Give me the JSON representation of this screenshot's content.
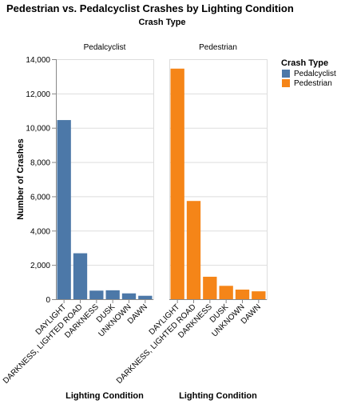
{
  "chart_data": {
    "type": "bar",
    "title": "Pedestrian vs. Pedalcyclist Crashes by Lighting Condition",
    "facet_title": "Crash Type",
    "xlabel": "Lighting Condition",
    "ylabel": "Number of Crashes",
    "ylim": [
      0,
      14000
    ],
    "yticks": [
      0,
      2000,
      4000,
      6000,
      8000,
      10000,
      12000,
      14000
    ],
    "ytick_labels": [
      "0",
      "2,000",
      "4,000",
      "6,000",
      "8,000",
      "10,000",
      "12,000",
      "14,000"
    ],
    "grid": true,
    "legend": {
      "title": "Crash Type",
      "position": "top-right",
      "entries": [
        {
          "label": "Pedalcyclist",
          "color": "#4c78a8"
        },
        {
          "label": "Pedestrian",
          "color": "#f58518"
        }
      ]
    },
    "categories": [
      "DAYLIGHT",
      "DARKNESS, LIGHTED ROAD",
      "DARKNESS",
      "DUSK",
      "UNKNOWN",
      "DAWN"
    ],
    "series": [
      {
        "name": "Pedalcyclist",
        "color": "#4c78a8",
        "values": [
          10450,
          2680,
          500,
          520,
          340,
          200
        ]
      },
      {
        "name": "Pedestrian",
        "color": "#f58518",
        "values": [
          13450,
          5730,
          1310,
          780,
          560,
          460
        ]
      }
    ]
  }
}
